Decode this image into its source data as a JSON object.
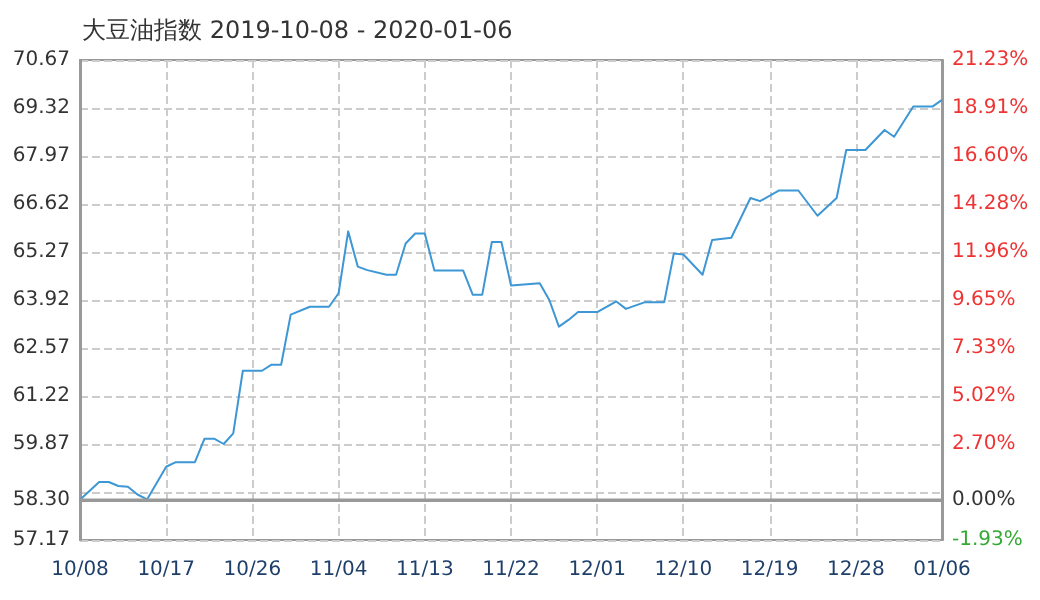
{
  "chart_data": {
    "type": "line",
    "title": "大豆油指数 2019-10-08 - 2020-01-06",
    "x": [
      "2019-10-08",
      "2019-10-10",
      "2019-10-11",
      "2019-10-12",
      "2019-10-13",
      "2019-10-14",
      "2019-10-15",
      "2019-10-17",
      "2019-10-18",
      "2019-10-20",
      "2019-10-21",
      "2019-10-22",
      "2019-10-23",
      "2019-10-24",
      "2019-10-25",
      "2019-10-27",
      "2019-10-28",
      "2019-10-29",
      "2019-10-30",
      "2019-11-01",
      "2019-11-03",
      "2019-11-04",
      "2019-11-05",
      "2019-11-06",
      "2019-11-07",
      "2019-11-09",
      "2019-11-10",
      "2019-11-11",
      "2019-11-12",
      "2019-11-13",
      "2019-11-14",
      "2019-11-17",
      "2019-11-18",
      "2019-11-19",
      "2019-11-20",
      "2019-11-21",
      "2019-11-22",
      "2019-11-25",
      "2019-11-26",
      "2019-11-27",
      "2019-11-28",
      "2019-11-29",
      "2019-12-01",
      "2019-12-03",
      "2019-12-04",
      "2019-12-06",
      "2019-12-08",
      "2019-12-09",
      "2019-12-10",
      "2019-12-12",
      "2019-12-13",
      "2019-12-15",
      "2019-12-17",
      "2019-12-18",
      "2019-12-20",
      "2019-12-22",
      "2019-12-24",
      "2019-12-26",
      "2019-12-27",
      "2019-12-29",
      "2019-12-31",
      "2020-01-01",
      "2020-01-03",
      "2020-01-05",
      "2020-01-06"
    ],
    "series": [
      {
        "color": "#3d97d5",
        "values": [
          58.3,
          58.8,
          58.8,
          58.69,
          58.67,
          58.45,
          58.31,
          59.23,
          59.36,
          59.36,
          60.02,
          60.02,
          59.87,
          60.17,
          61.93,
          61.93,
          62.1,
          62.1,
          63.51,
          63.73,
          63.73,
          64.11,
          65.85,
          64.86,
          64.76,
          64.63,
          64.63,
          65.51,
          65.79,
          65.79,
          64.75,
          64.75,
          64.07,
          64.07,
          65.55,
          65.55,
          64.33,
          64.39,
          63.92,
          63.17,
          63.36,
          63.58,
          63.58,
          63.88,
          63.67,
          63.86,
          63.86,
          65.23,
          65.2,
          64.63,
          65.61,
          65.67,
          66.79,
          66.7,
          67.0,
          67.0,
          66.29,
          66.79,
          68.14,
          68.14,
          68.7,
          68.51,
          69.36,
          69.36,
          69.55
        ]
      }
    ],
    "xlim": [
      "2019-10-08",
      "2020-01-06"
    ],
    "xticks": [
      {
        "value": "2019-10-08",
        "label": "10/08"
      },
      {
        "value": "2019-10-17",
        "label": "10/17"
      },
      {
        "value": "2019-10-26",
        "label": "10/26"
      },
      {
        "value": "2019-11-04",
        "label": "11/04"
      },
      {
        "value": "2019-11-13",
        "label": "11/13"
      },
      {
        "value": "2019-11-22",
        "label": "11/22"
      },
      {
        "value": "2019-12-01",
        "label": "12/01"
      },
      {
        "value": "2019-12-10",
        "label": "12/10"
      },
      {
        "value": "2019-12-19",
        "label": "12/19"
      },
      {
        "value": "2019-12-28",
        "label": "12/28"
      },
      {
        "value": "2020-01-06",
        "label": "01/06"
      }
    ],
    "ylim": [
      57.17,
      70.67
    ],
    "yticks": [
      {
        "value": 57.17,
        "label": "57.17"
      },
      {
        "value": 58.3,
        "label": "58.30"
      },
      {
        "value": 58.52,
        "label": null
      },
      {
        "value": 59.87,
        "label": "59.87"
      },
      {
        "value": 61.22,
        "label": "61.22"
      },
      {
        "value": 62.57,
        "label": "62.57"
      },
      {
        "value": 63.92,
        "label": "63.92"
      },
      {
        "value": 65.27,
        "label": "65.27"
      },
      {
        "value": 66.62,
        "label": "66.62"
      },
      {
        "value": 67.97,
        "label": "67.97"
      },
      {
        "value": 69.32,
        "label": "69.32"
      },
      {
        "value": 70.67,
        "label": "70.67"
      }
    ],
    "y2lim": [
      -1.93,
      21.23
    ],
    "y2ticks": [
      {
        "value": -1.93,
        "label": "-1.93%"
      },
      {
        "value": 0,
        "label": "0.00%"
      },
      {
        "value": 2.7,
        "label": "2.70%"
      },
      {
        "value": 5.02,
        "label": "5.02%"
      },
      {
        "value": 7.33,
        "label": "7.33%"
      },
      {
        "value": 9.65,
        "label": "9.65%"
      },
      {
        "value": 11.96,
        "label": "11.96%"
      },
      {
        "value": 14.28,
        "label": "14.28%"
      },
      {
        "value": 16.6,
        "label": "16.60%"
      },
      {
        "value": 18.91,
        "label": "18.91%"
      },
      {
        "value": 21.23,
        "label": "21.23%"
      }
    ],
    "ref_lines": [
      {
        "axis": "y",
        "value": 58.3,
        "color": "#999999",
        "line_style": "solid"
      }
    ],
    "grid": true,
    "marker": "none",
    "line_style": "solid"
  }
}
